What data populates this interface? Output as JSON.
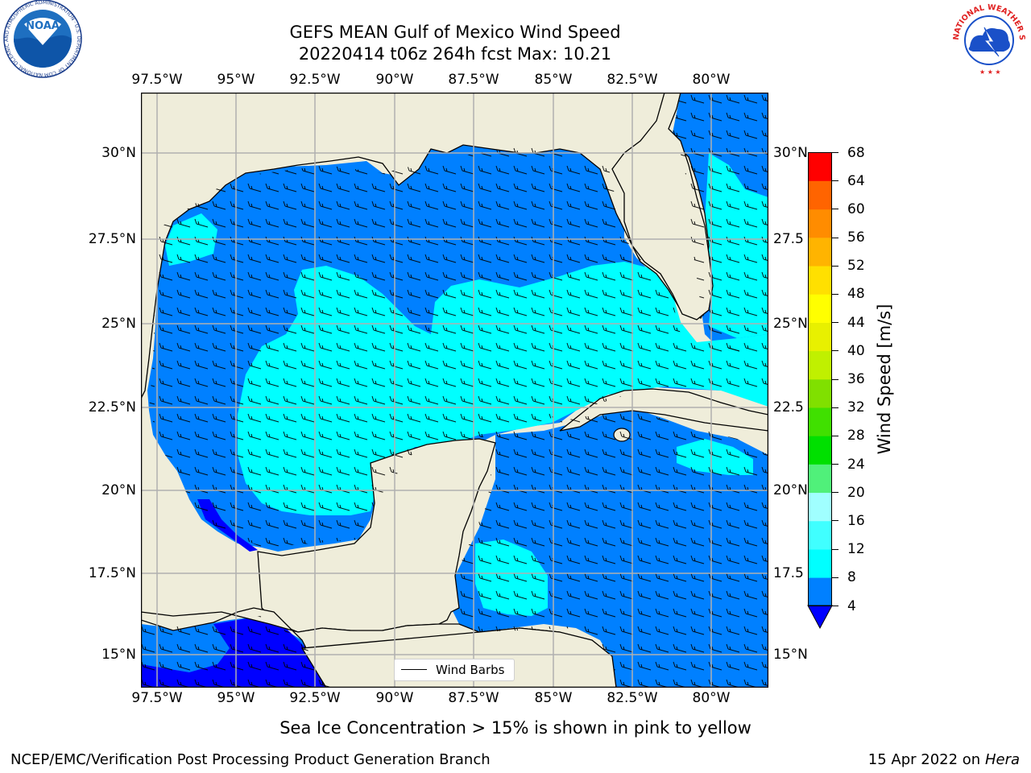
{
  "header": {
    "title_line1": "GEFS MEAN Gulf of Mexico Wind Speed",
    "title_line2": "20220414 t06z 264h fcst   Max: 10.21",
    "noaa_logo_text": "NOAA",
    "noaa_ring_text": "NATIONAL OCEANIC AND ATMOSPHERIC ADMINISTRATION · U.S. DEPARTMENT OF COMMERCE",
    "nws_ring_text": "NATIONAL WEATHER SERVICE"
  },
  "map": {
    "lon_labels": [
      "97.5°W",
      "95°W",
      "92.5°W",
      "90°W",
      "87.5°W",
      "85°W",
      "82.5°W",
      "80°W"
    ],
    "lat_labels_left": [
      "30°N",
      "27.5°N",
      "25°N",
      "22.5°N",
      "20°N",
      "17.5°N",
      "15°N"
    ],
    "lat_labels_right": [
      "30°N",
      "27.5",
      "25°N",
      "22.5",
      "20°N",
      "17.5",
      "15°N"
    ],
    "legend_label": "Wind Barbs",
    "colors": {
      "land": "#efedda",
      "wind_4_8": "#0080ff",
      "wind_8_12": "#00ffff",
      "wind_below_4": "#0000ff",
      "grid": "#b0b0b0"
    }
  },
  "colorbar": {
    "label": "Wind Speed [m/s]",
    "ticks": [
      "4",
      "8",
      "12",
      "16",
      "20",
      "24",
      "28",
      "32",
      "36",
      "40",
      "44",
      "48",
      "52",
      "56",
      "60",
      "64",
      "68"
    ],
    "colors": [
      "#0080ff",
      "#00ffff",
      "#40ffff",
      "#a0ffff",
      "#50f07a",
      "#00e000",
      "#40e000",
      "#80e000",
      "#c0f000",
      "#e8f000",
      "#ffff00",
      "#ffe000",
      "#ffb400",
      "#ff8c00",
      "#ff6400",
      "#ff3c00"
    ],
    "under_color": "#0000ff",
    "top_color": "#ff0000"
  },
  "footer": {
    "ice_note": "Sea Ice Concentration > 15% is shown in pink to yellow",
    "credit": "NCEP/EMC/Verification Post Processing Product Generation Branch",
    "date_prefix": "15 Apr 2022 on ",
    "machine": "Hera"
  }
}
